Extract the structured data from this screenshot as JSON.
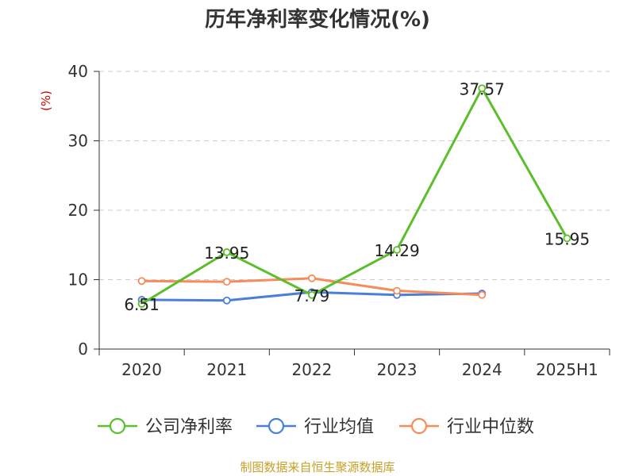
{
  "title": "历年净利率变化情况(%)",
  "source": "制图数据来自恒生聚源数据库",
  "colors": {
    "company": "#5bbf2b",
    "industry_avg": "#4a7fd8",
    "industry_median": "#f58c5a",
    "axis_text": "#333333",
    "ylabel": "#cc0000",
    "source": "#c8a028",
    "grid": "#cccccc"
  },
  "chart_data": {
    "type": "line",
    "title": "历年净利率变化情况(%)",
    "ylabel": "(%)",
    "xlabel": "",
    "categories": [
      "2020",
      "2021",
      "2022",
      "2023",
      "2024",
      "2025H1"
    ],
    "ylim": [
      0,
      40
    ],
    "yticks": [
      0,
      10,
      20,
      30,
      40
    ],
    "grid": true,
    "legend_position": "bottom",
    "series": [
      {
        "name": "公司净利率",
        "key": "company",
        "values": [
          6.51,
          13.95,
          7.79,
          14.29,
          37.57,
          15.95
        ],
        "data_labels": [
          "6.51",
          "13.95",
          "7.79",
          "14.29",
          "37.57",
          "15.95"
        ]
      },
      {
        "name": "行业均值",
        "key": "industry_avg",
        "values": [
          7.1,
          7.0,
          8.2,
          7.8,
          8.0,
          null
        ]
      },
      {
        "name": "行业中位数",
        "key": "industry_median",
        "values": [
          9.8,
          9.7,
          10.2,
          8.4,
          7.8,
          null
        ]
      }
    ]
  }
}
